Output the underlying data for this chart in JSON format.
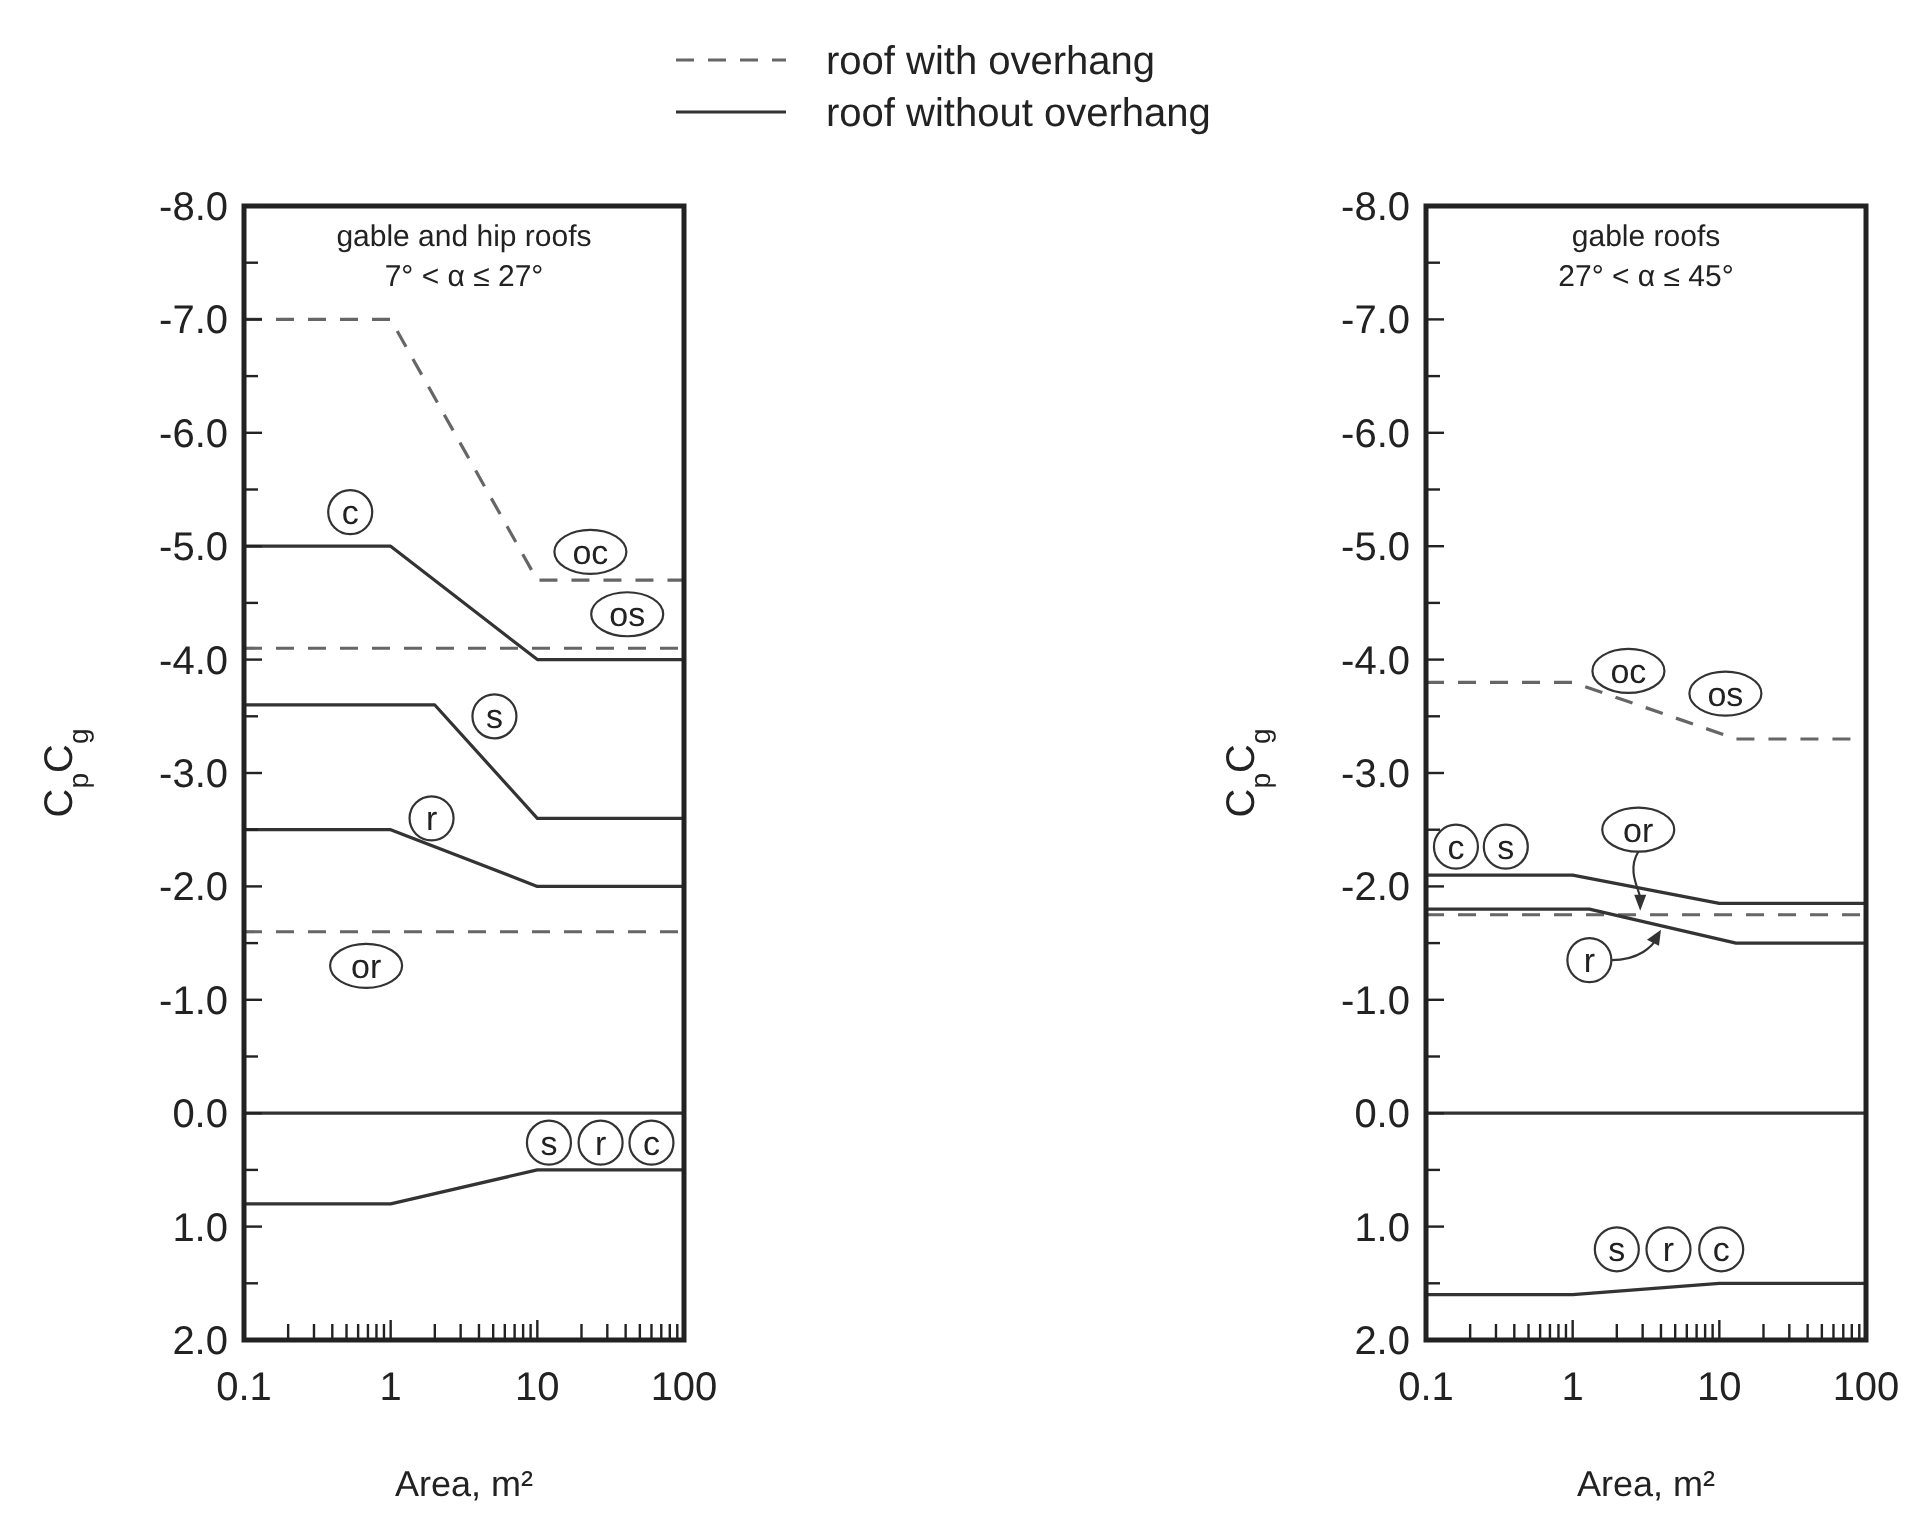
{
  "chart_data": [
    {
      "type": "line",
      "title": "gable and hip roofs",
      "subtitle": "7° < α ≤ 27°",
      "xlabel": "Area, m²",
      "ylabel": "C$_{p}$C$_{g}$",
      "log": "x",
      "legend": "top",
      "xlim": [
        0.1,
        100
      ],
      "ylim": [
        2,
        -8
      ],
      "xticks": [
        0.1,
        {
          "value": 0.2,
          "label": null
        },
        {
          "value": 0.3,
          "label": null
        },
        {
          "value": 0.4,
          "label": null
        },
        {
          "value": 0.5,
          "label": null
        },
        {
          "value": 0.6,
          "label": null
        },
        {
          "value": 0.7,
          "label": null
        },
        {
          "value": 0.8,
          "label": null
        },
        {
          "value": 0.9,
          "label": null
        },
        1,
        {
          "value": 2,
          "label": null
        },
        {
          "value": 3,
          "label": null
        },
        {
          "value": 4,
          "label": null
        },
        {
          "value": 5,
          "label": null
        },
        {
          "value": 6,
          "label": null
        },
        {
          "value": 7,
          "label": null
        },
        {
          "value": 8,
          "label": null
        },
        {
          "value": 9,
          "label": null
        },
        10,
        {
          "value": 20,
          "label": null
        },
        {
          "value": 30,
          "label": null
        },
        {
          "value": 40,
          "label": null
        },
        {
          "value": 50,
          "label": null
        },
        {
          "value": 60,
          "label": null
        },
        {
          "value": 70,
          "label": null
        },
        {
          "value": 80,
          "label": null
        },
        {
          "value": 90,
          "label": null
        },
        100
      ],
      "yticks": [
        {
          "value": -8,
          "label": "-8.0"
        },
        {
          "value": -7.5,
          "label": null
        },
        {
          "value": -7,
          "label": "-7.0"
        },
        {
          "value": -6.5,
          "label": null
        },
        {
          "value": -6,
          "label": "-6.0"
        },
        {
          "value": -5.5,
          "label": null
        },
        {
          "value": -5,
          "label": "-5.0"
        },
        {
          "value": -4.5,
          "label": null
        },
        {
          "value": -4,
          "label": "-4.0"
        },
        {
          "value": -3.5,
          "label": null
        },
        {
          "value": -3,
          "label": "-3.0"
        },
        {
          "value": -2.5,
          "label": null
        },
        {
          "value": -2,
          "label": "-2.0"
        },
        {
          "value": -1.5,
          "label": null
        },
        {
          "value": -1,
          "label": "-1.0"
        },
        {
          "value": -0.5,
          "label": null
        },
        {
          "value": 0,
          "label": "0.0"
        },
        {
          "value": 0.5,
          "label": null
        },
        {
          "value": 1,
          "label": "1.0"
        },
        {
          "value": 1.5,
          "label": null
        },
        {
          "value": 2,
          "label": "2.0"
        }
      ],
      "ref_lines": [
        {
          "axis": "y",
          "value": 0,
          "color": "#333333"
        }
      ],
      "series": [
        {
          "name": "roof with overhang",
          "color": "#666666",
          "line_style": "dashed",
          "x": [
            0.1,
            1,
            10,
            100
          ],
          "values": [
            -7,
            -7,
            -4.7,
            -4.7
          ]
        },
        {
          "color": "#666666",
          "line_style": "dashed",
          "x": [
            0.1,
            100
          ],
          "values": [
            -4.1,
            -4.1
          ]
        },
        {
          "color": "#666666",
          "line_style": "dashed",
          "x": [
            0.1,
            100
          ],
          "values": [
            -1.6,
            -1.6
          ]
        },
        {
          "name": "roof without overhang",
          "color": "#333333",
          "line_style": "solid",
          "x": [
            0.1,
            1,
            10,
            100
          ],
          "values": [
            -5,
            -5,
            -4,
            -4
          ]
        },
        {
          "color": "#333333",
          "line_style": "solid",
          "x": [
            0.1,
            2,
            10,
            100
          ],
          "values": [
            -3.6,
            -3.6,
            -2.6,
            -2.6
          ]
        },
        {
          "color": "#333333",
          "line_style": "solid",
          "x": [
            0.1,
            1,
            10,
            100
          ],
          "values": [
            -2.5,
            -2.5,
            -2,
            -2
          ]
        },
        {
          "color": "#333333",
          "line_style": "solid",
          "x": [
            0.1,
            1,
            10,
            100
          ],
          "values": [
            0.8,
            0.8,
            0.5,
            0.5
          ]
        }
      ],
      "annotations": [
        {
          "text": "c",
          "x": 0.53,
          "y": -5.3
        },
        {
          "text": "oc",
          "x": 23,
          "y": -4.95
        },
        {
          "text": "os",
          "x": 41,
          "y": -4.4
        },
        {
          "text": "s",
          "x": 5.1,
          "y": -3.5
        },
        {
          "text": "r",
          "x": 1.9,
          "y": -2.6
        },
        {
          "text": "or",
          "x": 0.68,
          "y": -1.3
        },
        {
          "text": "s",
          "x": 12,
          "y": 0.26
        },
        {
          "text": "r",
          "x": 27,
          "y": 0.26
        },
        {
          "text": "c",
          "x": 60,
          "y": 0.26
        }
      ]
    },
    {
      "type": "line",
      "title": "gable roofs",
      "subtitle": "27° < α ≤ 45°",
      "xlabel": "Area, m²",
      "ylabel": "C$_{p}$C$_{g}$",
      "log": "x",
      "xlim": [
        0.1,
        100
      ],
      "ylim": [
        2,
        -8
      ],
      "xticks": [
        0.1,
        {
          "value": 0.2,
          "label": null
        },
        {
          "value": 0.3,
          "label": null
        },
        {
          "value": 0.4,
          "label": null
        },
        {
          "value": 0.5,
          "label": null
        },
        {
          "value": 0.6,
          "label": null
        },
        {
          "value": 0.7,
          "label": null
        },
        {
          "value": 0.8,
          "label": null
        },
        {
          "value": 0.9,
          "label": null
        },
        1,
        {
          "value": 2,
          "label": null
        },
        {
          "value": 3,
          "label": null
        },
        {
          "value": 4,
          "label": null
        },
        {
          "value": 5,
          "label": null
        },
        {
          "value": 6,
          "label": null
        },
        {
          "value": 7,
          "label": null
        },
        {
          "value": 8,
          "label": null
        },
        {
          "value": 9,
          "label": null
        },
        10,
        {
          "value": 20,
          "label": null
        },
        {
          "value": 30,
          "label": null
        },
        {
          "value": 40,
          "label": null
        },
        {
          "value": 50,
          "label": null
        },
        {
          "value": 60,
          "label": null
        },
        {
          "value": 70,
          "label": null
        },
        {
          "value": 80,
          "label": null
        },
        {
          "value": 90,
          "label": null
        },
        100
      ],
      "yticks": [
        {
          "value": -8,
          "label": "-8.0"
        },
        {
          "value": -7.5,
          "label": null
        },
        {
          "value": -7,
          "label": "-7.0"
        },
        {
          "value": -6.5,
          "label": null
        },
        {
          "value": -6,
          "label": "-6.0"
        },
        {
          "value": -5.5,
          "label": null
        },
        {
          "value": -5,
          "label": "-5.0"
        },
        {
          "value": -4.5,
          "label": null
        },
        {
          "value": -4,
          "label": "-4.0"
        },
        {
          "value": -3.5,
          "label": null
        },
        {
          "value": -3,
          "label": "-3.0"
        },
        {
          "value": -2.5,
          "label": null
        },
        {
          "value": -2,
          "label": "-2.0"
        },
        {
          "value": -1.5,
          "label": null
        },
        {
          "value": -1,
          "label": "-1.0"
        },
        {
          "value": -0.5,
          "label": null
        },
        {
          "value": 0,
          "label": "0.0"
        },
        {
          "value": 0.5,
          "label": null
        },
        {
          "value": 1,
          "label": "1.0"
        },
        {
          "value": 1.5,
          "label": null
        },
        {
          "value": 2,
          "label": "2.0"
        }
      ],
      "ref_lines": [
        {
          "axis": "y",
          "value": 0,
          "color": "#333333"
        }
      ],
      "series": [
        {
          "color": "#666666",
          "line_style": "dashed",
          "x": [
            0.1,
            1,
            13,
            100
          ],
          "values": [
            -3.8,
            -3.8,
            -3.3,
            -3.3
          ]
        },
        {
          "color": "#666666",
          "line_style": "dashed",
          "x": [
            0.1,
            100
          ],
          "values": [
            -1.75,
            -1.75
          ]
        },
        {
          "color": "#333333",
          "line_style": "solid",
          "x": [
            0.1,
            1,
            10,
            100
          ],
          "values": [
            -2.1,
            -2.1,
            -1.85,
            -1.85
          ]
        },
        {
          "color": "#333333",
          "line_style": "solid",
          "x": [
            0.1,
            1.3,
            13,
            100
          ],
          "values": [
            -1.8,
            -1.8,
            -1.5,
            -1.5
          ]
        },
        {
          "color": "#333333",
          "line_style": "solid",
          "x": [
            0.1,
            1,
            10,
            100
          ],
          "values": [
            1.6,
            1.6,
            1.5,
            1.5
          ]
        }
      ],
      "annotations": [
        {
          "text": "c",
          "x": 0.16,
          "y": -2.35
        },
        {
          "text": "s",
          "x": 0.35,
          "y": -2.35
        },
        {
          "text": "or",
          "x": 2.8,
          "y": -2.5
        },
        {
          "text": "oc",
          "x": 2.4,
          "y": -3.9
        },
        {
          "text": "os",
          "x": 11,
          "y": -3.7
        },
        {
          "text": "r",
          "x": 1.3,
          "y": -1.35
        },
        {
          "text": "s",
          "x": 2,
          "y": 1.2
        },
        {
          "text": "r",
          "x": 4.5,
          "y": 1.2
        },
        {
          "text": "c",
          "x": 10.3,
          "y": 1.2
        }
      ]
    }
  ]
}
